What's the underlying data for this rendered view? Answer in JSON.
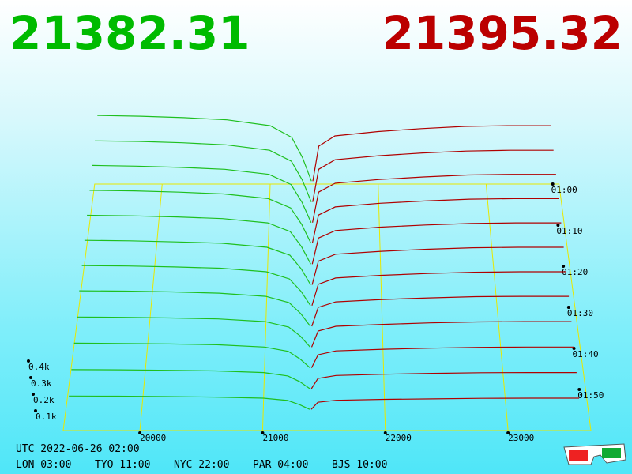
{
  "chart_data": {
    "type": "depth",
    "bid": 21382.31,
    "ask": 21395.32,
    "bid_color": "#1fbf1f",
    "ask_color": "#b00000",
    "bid_prices": [
      19400,
      19800,
      20200,
      20600,
      21000,
      21200,
      21300,
      21382
    ],
    "ask_prices": [
      21395,
      21450,
      21600,
      22000,
      22400,
      22800,
      23200,
      23600
    ],
    "snapshots": [
      {
        "t": 60,
        "bids": [
          470,
          465,
          455,
          440,
          400,
          320,
          180,
          20
        ],
        "asks": [
          20,
          260,
          330,
          360,
          380,
          395,
          400,
          400
        ]
      },
      {
        "t": 65,
        "bids": [
          432,
          428,
          419,
          405,
          368,
          294,
          166,
          18
        ],
        "asks": [
          18,
          239,
          304,
          331,
          350,
          363,
          368,
          368
        ]
      },
      {
        "t": 70,
        "bids": [
          400,
          395,
          387,
          374,
          340,
          272,
          153,
          17
        ],
        "asks": [
          17,
          221,
          281,
          306,
          323,
          336,
          340,
          340
        ]
      },
      {
        "t": 75,
        "bids": [
          367,
          363,
          355,
          343,
          312,
          250,
          140,
          16
        ],
        "asks": [
          16,
          203,
          257,
          281,
          296,
          308,
          312,
          312
        ]
      },
      {
        "t": 80,
        "bids": [
          334,
          330,
          323,
          312,
          284,
          227,
          128,
          14
        ],
        "asks": [
          14,
          185,
          234,
          256,
          270,
          280,
          284,
          284
        ]
      },
      {
        "t": 85,
        "bids": [
          301,
          298,
          291,
          282,
          256,
          205,
          115,
          13
        ],
        "asks": [
          13,
          166,
          211,
          230,
          243,
          253,
          256,
          256
        ]
      },
      {
        "t": 90,
        "bids": [
          268,
          265,
          259,
          251,
          228,
          182,
          103,
          11
        ],
        "asks": [
          11,
          148,
          188,
          205,
          217,
          225,
          228,
          228
        ]
      },
      {
        "t": 95,
        "bids": [
          235,
          233,
          228,
          220,
          200,
          160,
          90,
          10
        ],
        "asks": [
          10,
          130,
          165,
          180,
          190,
          198,
          200,
          200
        ]
      },
      {
        "t": 100,
        "bids": [
          197,
          195,
          191,
          185,
          168,
          134,
          76,
          8
        ],
        "asks": [
          8,
          109,
          139,
          151,
          160,
          166,
          168,
          168
        ]
      },
      {
        "t": 105,
        "bids": [
          160,
          158,
          155,
          150,
          136,
          109,
          61,
          7
        ],
        "asks": [
          7,
          88,
          112,
          122,
          129,
          134,
          136,
          136
        ]
      },
      {
        "t": 110,
        "bids": [
          122,
          121,
          118,
          114,
          104,
          83,
          47,
          5
        ],
        "asks": [
          5,
          68,
          86,
          94,
          99,
          103,
          104,
          104
        ]
      },
      {
        "t": 115,
        "bids": [
          85,
          84,
          82,
          79,
          72,
          58,
          32,
          4
        ],
        "asks": [
          4,
          47,
          59,
          65,
          68,
          71,
          72,
          72
        ]
      }
    ],
    "xlim": [
      19375,
      23675
    ],
    "xticks": [
      20000,
      21000,
      22000,
      23000
    ],
    "zticks": [
      {
        "value": 100,
        "label": "0.1k"
      },
      {
        "value": 200,
        "label": "0.2k"
      },
      {
        "value": 300,
        "label": "0.3k"
      },
      {
        "value": 400,
        "label": "0.4k"
      }
    ],
    "tlim": [
      60,
      120
    ],
    "tticks": [
      {
        "value": 60,
        "label": "01:00"
      },
      {
        "value": 70,
        "label": "01:10"
      },
      {
        "value": 80,
        "label": "01:20"
      },
      {
        "value": 90,
        "label": "01:30"
      },
      {
        "value": 100,
        "label": "01:40"
      },
      {
        "value": 110,
        "label": "01:50"
      }
    ],
    "clock": "UTC 2022-06-26 02:00",
    "zones": [
      "LON 03:00",
      "TYO 11:00",
      "NYC 22:00",
      "PAR 04:00",
      "BJS 10:00"
    ]
  }
}
